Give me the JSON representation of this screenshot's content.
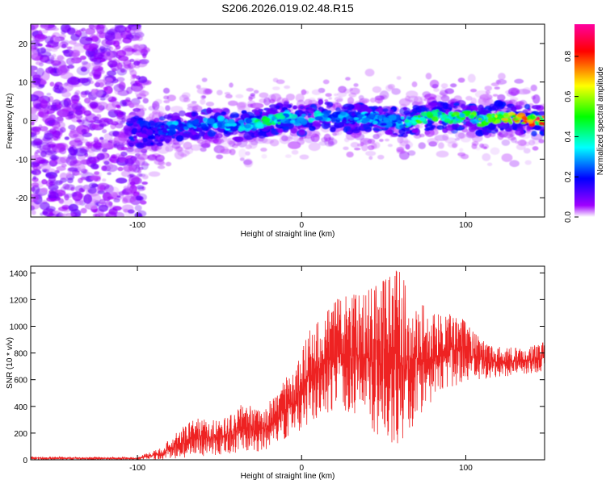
{
  "title": "S206.2026.019.02.48.R15",
  "chart_data": [
    {
      "type": "heatmap",
      "name": "spectrogram",
      "xlabel": "Height of straight line (km)",
      "ylabel": "Frequency (Hz)",
      "xlim": [
        -165,
        148
      ],
      "ylim": [
        -25,
        25
      ],
      "xticks": [
        -100,
        0,
        100
      ],
      "xtick_labels": [
        "-100",
        "0",
        "100"
      ],
      "yticks": [
        -20,
        -10,
        0,
        10,
        20
      ],
      "ytick_labels": [
        "-20",
        "-10",
        "0",
        "10",
        "20"
      ],
      "signal_trace": {
        "x": [
          -100,
          -90,
          -80,
          -70,
          -60,
          -50,
          -40,
          -30,
          -20,
          -10,
          0,
          10,
          20,
          30,
          40,
          50,
          60,
          70,
          80,
          90,
          100,
          110,
          120,
          130,
          140,
          148
        ],
        "frequency": [
          -3,
          -3.5,
          -2,
          -1.5,
          -1,
          -0.5,
          -1.5,
          -1,
          0,
          1,
          0,
          1.5,
          1,
          0.5,
          1,
          0,
          -0.5,
          0,
          1.5,
          0.5,
          1.5,
          -0.5,
          1,
          0.5,
          0,
          0
        ],
        "amplitude": [
          0.15,
          0.2,
          0.35,
          0.3,
          0.3,
          0.35,
          0.35,
          0.45,
          0.5,
          0.4,
          0.35,
          0.4,
          0.35,
          0.3,
          0.35,
          0.3,
          0.35,
          0.55,
          0.6,
          0.5,
          0.55,
          0.6,
          0.7,
          0.8,
          0.9,
          0.9
        ]
      },
      "colorbar": {
        "label": "Normalized spectral amplitude",
        "min": 0.0,
        "max": 0.96,
        "ticks": [
          0.0,
          0.2,
          0.4,
          0.6,
          0.8
        ],
        "tick_labels": [
          "0.0",
          "0.2",
          "0.4",
          "0.6",
          "0.8"
        ],
        "colors": [
          "#ffffff",
          "#a000ff",
          "#0000ff",
          "#00ffff",
          "#00ff00",
          "#ffff00",
          "#ff0000",
          "#ff00a0"
        ]
      },
      "noise_region_end_x": -100
    },
    {
      "type": "line",
      "name": "snr",
      "xlabel": "Height of straight line (km)",
      "ylabel": "SNR (10 * v/v)",
      "xlim": [
        -165,
        148
      ],
      "ylim": [
        0,
        1450
      ],
      "xticks": [
        -100,
        0,
        100
      ],
      "xtick_labels": [
        "-100",
        "0",
        "100"
      ],
      "yticks": [
        0,
        200,
        400,
        600,
        800,
        1000,
        1200,
        1400
      ],
      "ytick_labels": [
        "0",
        "200",
        "400",
        "600",
        "800",
        "1000",
        "1200",
        "1400"
      ],
      "color": "#ee2222",
      "envelope": {
        "x": [
          -165,
          -120,
          -100,
          -85,
          -75,
          -65,
          -55,
          -45,
          -35,
          -25,
          -15,
          -5,
          5,
          15,
          25,
          35,
          45,
          55,
          60,
          65,
          75,
          85,
          95,
          105,
          115,
          125,
          135,
          148
        ],
        "upper": [
          25,
          20,
          20,
          90,
          230,
          310,
          300,
          330,
          430,
          360,
          520,
          700,
          980,
          1100,
          1250,
          1230,
          1300,
          1380,
          1450,
          1220,
          1150,
          1080,
          1100,
          950,
          850,
          850,
          830,
          880
        ],
        "lower": [
          0,
          0,
          0,
          0,
          10,
          20,
          30,
          40,
          60,
          60,
          100,
          180,
          280,
          350,
          380,
          320,
          180,
          100,
          60,
          200,
          380,
          520,
          560,
          600,
          610,
          620,
          640,
          660
        ]
      }
    }
  ]
}
